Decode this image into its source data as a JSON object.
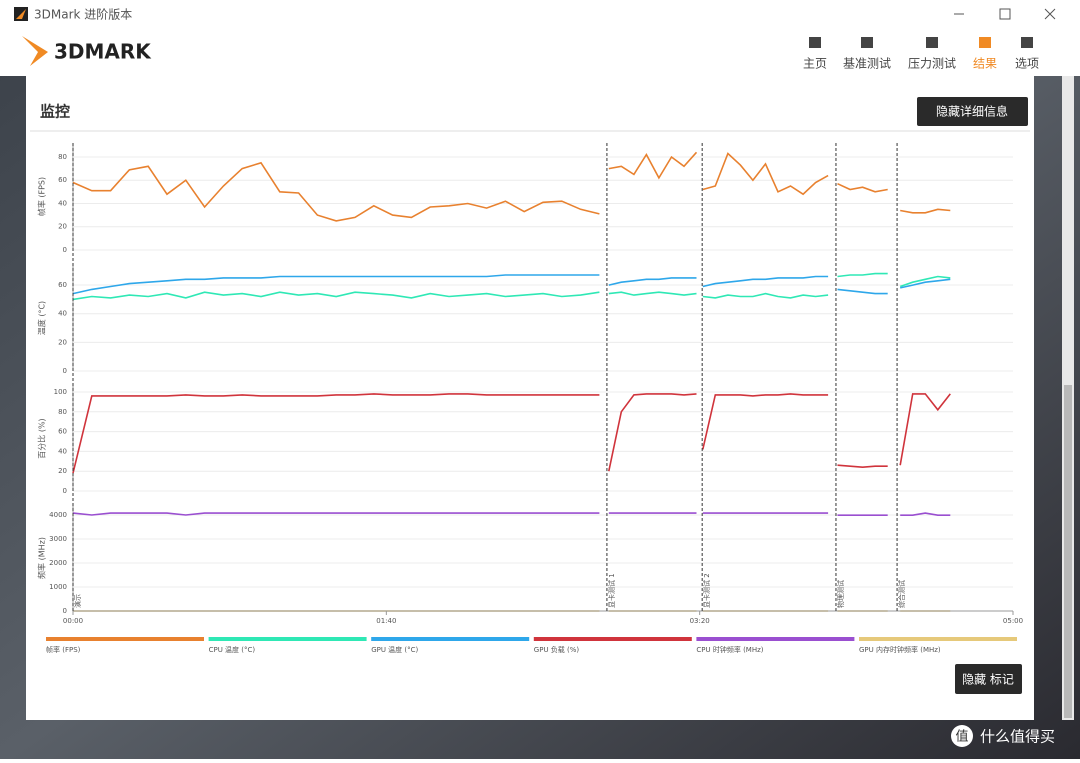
{
  "window": {
    "title": "3DMark 进阶版本"
  },
  "logo": "3DMARK",
  "nav": {
    "items": [
      "主页",
      "基准测试",
      "压力测试",
      "结果",
      "选项"
    ],
    "active": 3
  },
  "section": {
    "title": "监控",
    "button": "隐藏详细信息"
  },
  "chart_data": {
    "type": "line",
    "xlim": [
      0,
      300
    ],
    "xticks": [
      {
        "value": 0,
        "label": "00:00"
      },
      {
        "value": 100,
        "label": "01:40"
      },
      {
        "value": 200,
        "label": "03:20"
      },
      {
        "value": 300,
        "label": "05:00"
      }
    ],
    "x": [
      0,
      6,
      12,
      18,
      24,
      30,
      36,
      42,
      48,
      54,
      60,
      66,
      72,
      78,
      84,
      90,
      96,
      102,
      108,
      114,
      120,
      126,
      132,
      138,
      144,
      150,
      156,
      162,
      168,
      170,
      171,
      175,
      179,
      183,
      187,
      191,
      195,
      199,
      200,
      201,
      205,
      209,
      213,
      217,
      221,
      225,
      229,
      233,
      237,
      241,
      243,
      244,
      248,
      252,
      256,
      260,
      262.5,
      264,
      268,
      272,
      276,
      280
    ],
    "markers": [
      {
        "x": 0,
        "label": "演示"
      },
      {
        "x": 170.4,
        "label": "显卡测试 1"
      },
      {
        "x": 200.8,
        "label": "显卡测试 2"
      },
      {
        "x": 243.5,
        "label": "物理测试"
      },
      {
        "x": 263,
        "label": "综合测试"
      }
    ],
    "panels": [
      {
        "ylabel": "帧率 (FPS)",
        "ylim": [
          0,
          92
        ],
        "yticks": [
          0,
          20,
          40,
          60,
          80
        ],
        "series": [
          {
            "name": "帧率 (FPS)",
            "color": "#e8812f",
            "values": [
              58,
              51,
              51,
              69,
              72,
              48,
              60,
              37,
              55,
              70,
              75,
              50,
              49,
              30,
              25,
              28,
              38,
              30,
              28,
              37,
              38,
              40,
              36,
              42,
              33,
              41,
              42,
              35,
              31,
              null,
              70,
              72,
              65,
              82,
              62,
              80,
              72,
              84,
              null,
              52,
              55,
              83,
              73,
              60,
              74,
              50,
              55,
              48,
              58,
              64,
              null,
              57,
              52,
              54,
              50,
              52,
              null,
              34,
              32,
              32,
              35,
              34
            ]
          }
        ]
      },
      {
        "ylabel": "温度 (°C)",
        "ylim": [
          0,
          74
        ],
        "yticks": [
          0,
          20,
          40,
          60
        ],
        "series": [
          {
            "name": "CPU 温度 (°C)",
            "color": "#2fe8b5",
            "values": [
              50,
              52,
              51,
              53,
              52,
              54,
              51,
              55,
              53,
              54,
              52,
              55,
              53,
              54,
              52,
              55,
              54,
              53,
              51,
              54,
              52,
              53,
              54,
              52,
              53,
              54,
              52,
              53,
              55,
              null,
              54,
              55,
              53,
              54,
              55,
              54,
              53,
              54,
              null,
              52,
              51,
              53,
              52,
              52,
              54,
              52,
              51,
              53,
              52,
              53,
              null,
              66,
              67,
              67,
              68,
              68,
              null,
              59,
              62,
              64,
              66,
              65
            ]
          },
          {
            "name": "GPU 温度 (°C)",
            "color": "#2ea7ea",
            "values": [
              54,
              57,
              59,
              61,
              62,
              63,
              64,
              64,
              65,
              65,
              65,
              66,
              66,
              66,
              66,
              66,
              66,
              66,
              66,
              66,
              66,
              66,
              66,
              67,
              67,
              67,
              67,
              67,
              67,
              null,
              60,
              62,
              63,
              64,
              64,
              65,
              65,
              65,
              null,
              59,
              61,
              62,
              63,
              64,
              64,
              65,
              65,
              65,
              66,
              66,
              null,
              57,
              56,
              55,
              54,
              54,
              null,
              58,
              60,
              62,
              63,
              64
            ]
          }
        ]
      },
      {
        "ylabel": "百分比 (%)",
        "ylim": [
          0,
          106
        ],
        "yticks": [
          0,
          20,
          40,
          60,
          80,
          100
        ],
        "series": [
          {
            "name": "GPU 负载 (%)",
            "color": "#d0343c",
            "values": [
              18,
              96,
              96,
              96,
              96,
              96,
              97,
              96,
              96,
              97,
              96,
              96,
              96,
              96,
              97,
              97,
              98,
              97,
              97,
              97,
              98,
              98,
              97,
              97,
              97,
              97,
              97,
              97,
              97,
              null,
              20,
              80,
              97,
              98,
              98,
              98,
              97,
              98,
              null,
              42,
              97,
              97,
              97,
              96,
              97,
              97,
              98,
              97,
              97,
              97,
              null,
              26,
              25,
              24,
              25,
              25,
              null,
              26,
              98,
              98,
              82,
              98
            ]
          }
        ]
      },
      {
        "ylabel": "频率 (MHz)",
        "ylim": [
          0,
          4417
        ],
        "yticks": [
          0,
          1000,
          2000,
          3000,
          4000
        ],
        "series": [
          {
            "name": "CPU 时钟频率 (MHz)",
            "color": "#9a4fd0",
            "values": [
              4080,
              4000,
              4080,
              4080,
              4080,
              4080,
              4000,
              4080,
              4080,
              4080,
              4080,
              4080,
              4080,
              4080,
              4080,
              4080,
              4080,
              4080,
              4080,
              4080,
              4080,
              4080,
              4080,
              4080,
              4080,
              4080,
              4080,
              4080,
              4080,
              null,
              4080,
              4080,
              4080,
              4080,
              4080,
              4080,
              4080,
              4080,
              null,
              4080,
              4080,
              4080,
              4080,
              4080,
              4080,
              4080,
              4080,
              4080,
              4080,
              4080,
              null,
              3990,
              3990,
              3990,
              3990,
              3990,
              null,
              3990,
              3990,
              4080,
              3990,
              3990
            ]
          },
          {
            "name": "GPU 内存时钟频率 (MHz)",
            "color": "#e6c97a",
            "values": [
              0,
              0,
              0,
              0,
              0,
              0,
              0,
              0,
              0,
              0,
              0,
              0,
              0,
              0,
              0,
              0,
              0,
              0,
              0,
              0,
              0,
              0,
              0,
              0,
              0,
              0,
              0,
              0,
              0,
              null,
              0,
              0,
              0,
              0,
              0,
              0,
              0,
              0,
              null,
              0,
              0,
              0,
              0,
              0,
              0,
              0,
              0,
              0,
              0,
              0,
              null,
              0,
              0,
              0,
              0,
              0,
              null,
              0,
              0,
              0,
              0,
              0
            ]
          }
        ]
      }
    ]
  },
  "markers_button": "隐藏 标记",
  "watermark": {
    "icon": "值",
    "text": "什么值得买"
  }
}
